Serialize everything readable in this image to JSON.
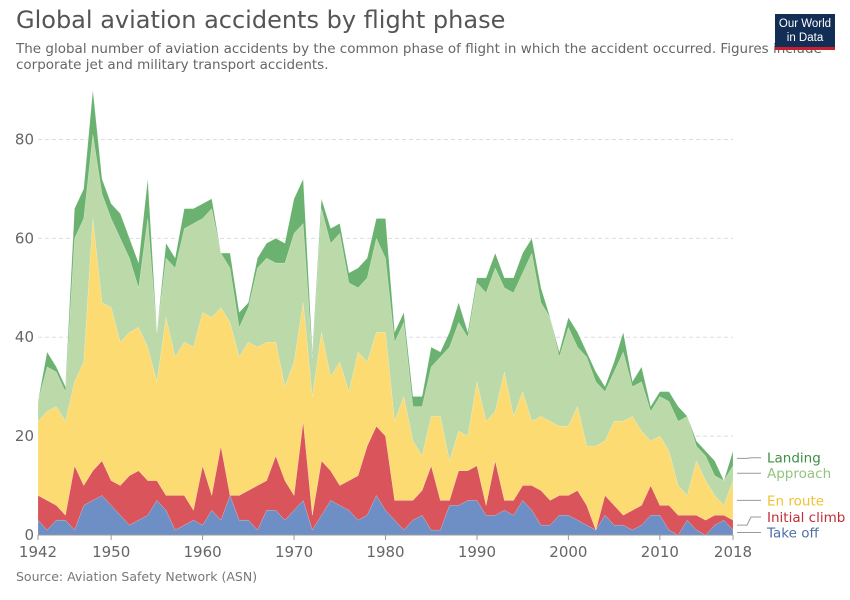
{
  "header": {
    "title": "Global aviation accidents by flight phase",
    "subtitle": "The global number of aviation accidents by the common phase of flight in which the accident occurred. Figures include corporate jet and military transport accidents."
  },
  "logo": {
    "line1": "Our World",
    "line2": "in Data",
    "bg_color": "#132e54",
    "accent_color": "#c8202f"
  },
  "footer": {
    "source": "Source: Aviation Safety Network (ASN)"
  },
  "chart_data": {
    "type": "area",
    "stacked": true,
    "title": "Global aviation accidents by flight phase",
    "xlim": [
      1942,
      2018
    ],
    "ylim": [
      0,
      90
    ],
    "x_ticks": [
      "1942",
      "1950",
      "1960",
      "1970",
      "1980",
      "1990",
      "2000",
      "2010",
      "2018"
    ],
    "y_ticks": [
      "0",
      "20",
      "40",
      "60",
      "80"
    ],
    "grid": "horizontal dashed",
    "legend": "right, aligned to series ends",
    "x": [
      1942,
      1943,
      1944,
      1945,
      1946,
      1947,
      1948,
      1949,
      1950,
      1951,
      1952,
      1953,
      1954,
      1955,
      1956,
      1957,
      1958,
      1959,
      1960,
      1961,
      1962,
      1963,
      1964,
      1965,
      1966,
      1967,
      1968,
      1969,
      1970,
      1971,
      1972,
      1973,
      1974,
      1975,
      1976,
      1977,
      1978,
      1979,
      1980,
      1981,
      1982,
      1983,
      1984,
      1985,
      1986,
      1987,
      1988,
      1989,
      1990,
      1991,
      1992,
      1993,
      1994,
      1995,
      1996,
      1997,
      1998,
      1999,
      2000,
      2001,
      2002,
      2003,
      2004,
      2005,
      2006,
      2007,
      2008,
      2009,
      2010,
      2011,
      2012,
      2013,
      2014,
      2015,
      2016,
      2017,
      2018
    ],
    "series": [
      {
        "name": "Take off",
        "color": "#6d8fc6",
        "values": [
          3,
          1,
          3,
          3,
          1,
          6,
          7,
          8,
          6,
          4,
          2,
          3,
          4,
          7,
          5,
          1,
          2,
          3,
          2,
          5,
          3,
          8,
          3,
          3,
          1,
          5,
          5,
          3,
          5,
          7,
          1,
          4,
          7,
          6,
          5,
          3,
          4,
          8,
          5,
          3,
          1,
          3,
          4,
          1,
          1,
          6,
          6,
          7,
          7,
          4,
          4,
          5,
          4,
          7,
          5,
          2,
          2,
          4,
          4,
          3,
          2,
          1,
          4,
          2,
          2,
          1,
          2,
          4,
          4,
          1,
          0,
          3,
          1,
          0,
          2,
          3,
          1
        ]
      },
      {
        "name": "Initial climb",
        "color": "#d9545b",
        "values": [
          5,
          6,
          3,
          1,
          13,
          4,
          6,
          7,
          5,
          6,
          10,
          10,
          7,
          4,
          3,
          7,
          6,
          2,
          12,
          3,
          15,
          0,
          5,
          6,
          9,
          6,
          11,
          8,
          3,
          16,
          3,
          11,
          6,
          4,
          6,
          9,
          14,
          14,
          15,
          4,
          6,
          4,
          5,
          13,
          6,
          1,
          7,
          6,
          7,
          2,
          11,
          2,
          3,
          3,
          5,
          7,
          5,
          4,
          4,
          6,
          4,
          0,
          4,
          4,
          2,
          4,
          4,
          6,
          2,
          5,
          4,
          1,
          3,
          3,
          2,
          1,
          2
        ]
      },
      {
        "name": "En route",
        "color": "#fcdb73",
        "values": [
          15,
          18,
          20,
          19,
          17,
          25,
          51,
          32,
          35,
          29,
          29,
          29,
          27,
          20,
          36,
          28,
          31,
          33,
          31,
          36,
          28,
          35,
          28,
          30,
          28,
          28,
          23,
          19,
          27,
          24,
          24,
          26,
          19,
          25,
          18,
          25,
          17,
          19,
          21,
          16,
          21,
          12,
          7,
          10,
          17,
          8,
          8,
          7,
          17,
          17,
          10,
          26,
          17,
          19,
          13,
          15,
          16,
          14,
          14,
          17,
          12,
          17,
          11,
          17,
          19,
          19,
          15,
          9,
          14,
          11,
          6,
          4,
          11,
          8,
          4,
          2,
          8
        ]
      },
      {
        "name": "Approach",
        "color": "#bcdaa9",
        "values": [
          4,
          9,
          7,
          6,
          29,
          29,
          17,
          22,
          18,
          21,
          15,
          8,
          26,
          10,
          12,
          18,
          23,
          25,
          19,
          22,
          11,
          11,
          6,
          7,
          16,
          17,
          16,
          25,
          26,
          16,
          8,
          25,
          27,
          26,
          22,
          13,
          17,
          19,
          15,
          16,
          15,
          7,
          10,
          10,
          12,
          23,
          22,
          20,
          20,
          26,
          29,
          17,
          25,
          24,
          34,
          23,
          21,
          14,
          20,
          12,
          18,
          13,
          10,
          10,
          14,
          6,
          10,
          6,
          8,
          10,
          13,
          16,
          3,
          5,
          4,
          5,
          3
        ]
      },
      {
        "name": "Landing",
        "color": "#6bb270",
        "values": [
          0,
          3,
          1,
          1,
          6,
          6,
          9,
          3,
          3,
          5,
          4,
          5,
          8,
          0,
          3,
          2,
          4,
          3,
          3,
          2,
          0,
          3,
          3,
          1,
          2,
          3,
          5,
          4,
          7,
          9,
          1,
          2,
          3,
          2,
          2,
          4,
          4,
          4,
          8,
          2,
          2,
          2,
          2,
          4,
          1,
          3,
          4,
          1,
          1,
          3,
          3,
          2,
          3,
          4,
          3,
          3,
          0,
          1,
          2,
          3,
          1,
          2,
          1,
          2,
          4,
          1,
          3,
          1,
          1,
          2,
          3,
          0,
          1,
          1,
          3,
          0,
          3
        ]
      }
    ]
  }
}
